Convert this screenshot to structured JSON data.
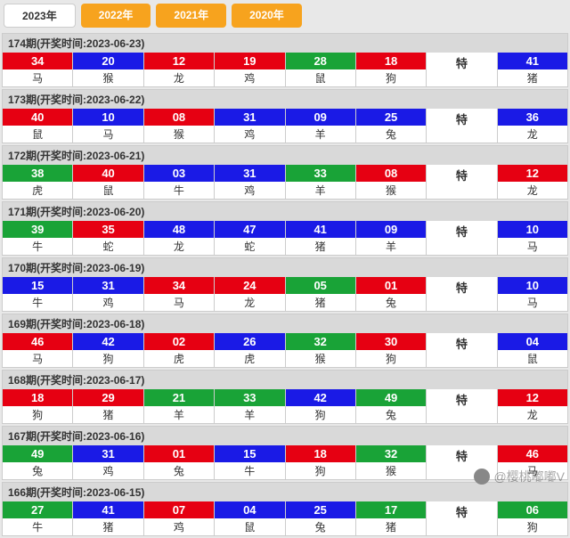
{
  "tabs": [
    {
      "label": "2023年",
      "active": true
    },
    {
      "label": "2022年",
      "active": false
    },
    {
      "label": "2021年",
      "active": false
    },
    {
      "label": "2020年",
      "active": false
    }
  ],
  "colors": {
    "red": "#e60012",
    "blue": "#1a1ae6",
    "green": "#19a337",
    "tab_active_bg": "#ffffff",
    "tab_bg": "#f7a31e",
    "header_bg": "#d9d9d9"
  },
  "special_label": "特",
  "periods": [
    {
      "title": "174期(开奖时间:2023-06-23)",
      "cells": [
        {
          "num": "34",
          "lbl": "马",
          "c": "red"
        },
        {
          "num": "20",
          "lbl": "猴",
          "c": "blue"
        },
        {
          "num": "12",
          "lbl": "龙",
          "c": "red"
        },
        {
          "num": "19",
          "lbl": "鸡",
          "c": "red"
        },
        {
          "num": "28",
          "lbl": "鼠",
          "c": "green"
        },
        {
          "num": "18",
          "lbl": "狗",
          "c": "red"
        },
        {
          "num": "特",
          "lbl": "",
          "c": "none"
        },
        {
          "num": "41",
          "lbl": "猪",
          "c": "blue"
        }
      ]
    },
    {
      "title": "173期(开奖时间:2023-06-22)",
      "cells": [
        {
          "num": "40",
          "lbl": "鼠",
          "c": "red"
        },
        {
          "num": "10",
          "lbl": "马",
          "c": "blue"
        },
        {
          "num": "08",
          "lbl": "猴",
          "c": "red"
        },
        {
          "num": "31",
          "lbl": "鸡",
          "c": "blue"
        },
        {
          "num": "09",
          "lbl": "羊",
          "c": "blue"
        },
        {
          "num": "25",
          "lbl": "兔",
          "c": "blue"
        },
        {
          "num": "特",
          "lbl": "",
          "c": "none"
        },
        {
          "num": "36",
          "lbl": "龙",
          "c": "blue"
        }
      ]
    },
    {
      "title": "172期(开奖时间:2023-06-21)",
      "cells": [
        {
          "num": "38",
          "lbl": "虎",
          "c": "green"
        },
        {
          "num": "40",
          "lbl": "鼠",
          "c": "red"
        },
        {
          "num": "03",
          "lbl": "牛",
          "c": "blue"
        },
        {
          "num": "31",
          "lbl": "鸡",
          "c": "blue"
        },
        {
          "num": "33",
          "lbl": "羊",
          "c": "green"
        },
        {
          "num": "08",
          "lbl": "猴",
          "c": "red"
        },
        {
          "num": "特",
          "lbl": "",
          "c": "none"
        },
        {
          "num": "12",
          "lbl": "龙",
          "c": "red"
        }
      ]
    },
    {
      "title": "171期(开奖时间:2023-06-20)",
      "cells": [
        {
          "num": "39",
          "lbl": "牛",
          "c": "green"
        },
        {
          "num": "35",
          "lbl": "蛇",
          "c": "red"
        },
        {
          "num": "48",
          "lbl": "龙",
          "c": "blue"
        },
        {
          "num": "47",
          "lbl": "蛇",
          "c": "blue"
        },
        {
          "num": "41",
          "lbl": "猪",
          "c": "blue"
        },
        {
          "num": "09",
          "lbl": "羊",
          "c": "blue"
        },
        {
          "num": "特",
          "lbl": "",
          "c": "none"
        },
        {
          "num": "10",
          "lbl": "马",
          "c": "blue"
        }
      ]
    },
    {
      "title": "170期(开奖时间:2023-06-19)",
      "cells": [
        {
          "num": "15",
          "lbl": "牛",
          "c": "blue"
        },
        {
          "num": "31",
          "lbl": "鸡",
          "c": "blue"
        },
        {
          "num": "34",
          "lbl": "马",
          "c": "red"
        },
        {
          "num": "24",
          "lbl": "龙",
          "c": "red"
        },
        {
          "num": "05",
          "lbl": "猪",
          "c": "green"
        },
        {
          "num": "01",
          "lbl": "兔",
          "c": "red"
        },
        {
          "num": "特",
          "lbl": "",
          "c": "none"
        },
        {
          "num": "10",
          "lbl": "马",
          "c": "blue"
        }
      ]
    },
    {
      "title": "169期(开奖时间:2023-06-18)",
      "cells": [
        {
          "num": "46",
          "lbl": "马",
          "c": "red"
        },
        {
          "num": "42",
          "lbl": "狗",
          "c": "blue"
        },
        {
          "num": "02",
          "lbl": "虎",
          "c": "red"
        },
        {
          "num": "26",
          "lbl": "虎",
          "c": "blue"
        },
        {
          "num": "32",
          "lbl": "猴",
          "c": "green"
        },
        {
          "num": "30",
          "lbl": "狗",
          "c": "red"
        },
        {
          "num": "特",
          "lbl": "",
          "c": "none"
        },
        {
          "num": "04",
          "lbl": "鼠",
          "c": "blue"
        }
      ]
    },
    {
      "title": "168期(开奖时间:2023-06-17)",
      "cells": [
        {
          "num": "18",
          "lbl": "狗",
          "c": "red"
        },
        {
          "num": "29",
          "lbl": "猪",
          "c": "red"
        },
        {
          "num": "21",
          "lbl": "羊",
          "c": "green"
        },
        {
          "num": "33",
          "lbl": "羊",
          "c": "green"
        },
        {
          "num": "42",
          "lbl": "狗",
          "c": "blue"
        },
        {
          "num": "49",
          "lbl": "兔",
          "c": "green"
        },
        {
          "num": "特",
          "lbl": "",
          "c": "none"
        },
        {
          "num": "12",
          "lbl": "龙",
          "c": "red"
        }
      ]
    },
    {
      "title": "167期(开奖时间:2023-06-16)",
      "cells": [
        {
          "num": "49",
          "lbl": "兔",
          "c": "green"
        },
        {
          "num": "31",
          "lbl": "鸡",
          "c": "blue"
        },
        {
          "num": "01",
          "lbl": "兔",
          "c": "red"
        },
        {
          "num": "15",
          "lbl": "牛",
          "c": "blue"
        },
        {
          "num": "18",
          "lbl": "狗",
          "c": "red"
        },
        {
          "num": "32",
          "lbl": "猴",
          "c": "green"
        },
        {
          "num": "特",
          "lbl": "",
          "c": "none"
        },
        {
          "num": "46",
          "lbl": "马",
          "c": "red"
        }
      ]
    },
    {
      "title": "166期(开奖时间:2023-06-15)",
      "cells": [
        {
          "num": "27",
          "lbl": "牛",
          "c": "green"
        },
        {
          "num": "41",
          "lbl": "猪",
          "c": "blue"
        },
        {
          "num": "07",
          "lbl": "鸡",
          "c": "red"
        },
        {
          "num": "04",
          "lbl": "鼠",
          "c": "blue"
        },
        {
          "num": "25",
          "lbl": "兔",
          "c": "blue"
        },
        {
          "num": "17",
          "lbl": "猪",
          "c": "green"
        },
        {
          "num": "特",
          "lbl": "",
          "c": "none"
        },
        {
          "num": "06",
          "lbl": "狗",
          "c": "green"
        }
      ]
    }
  ],
  "watermark": "@樱桃嘟嘟V"
}
